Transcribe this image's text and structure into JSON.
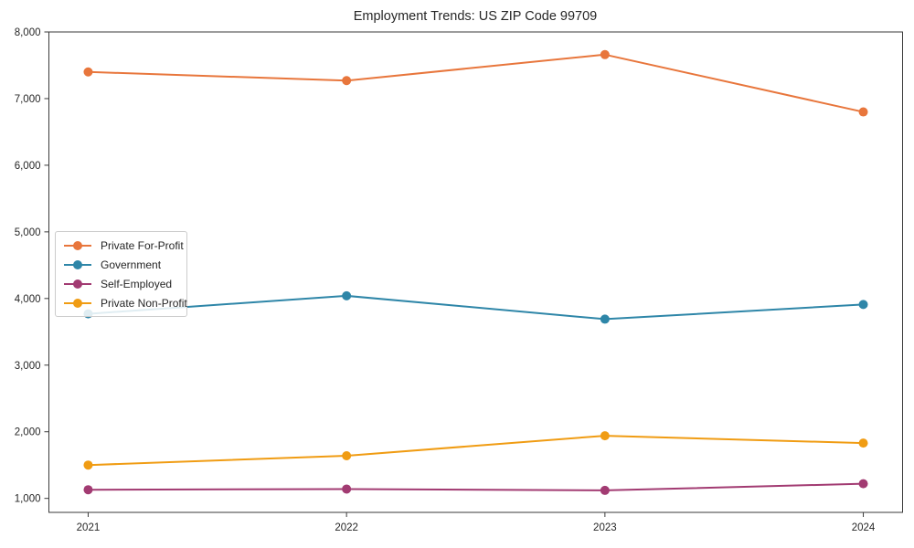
{
  "chart_data": {
    "type": "line",
    "title": "Employment Trends: US ZIP Code 99709",
    "categories": [
      "2021",
      "2022",
      "2023",
      "2024"
    ],
    "series": [
      {
        "name": "Private For-Profit",
        "color": "#E8763C",
        "values": [
          7400,
          7270,
          7660,
          6800
        ]
      },
      {
        "name": "Government",
        "color": "#2E86A8",
        "values": [
          3770,
          4040,
          3690,
          3910
        ]
      },
      {
        "name": "Self-Employed",
        "color": "#A23B72",
        "values": [
          1130,
          1140,
          1120,
          1220
        ]
      },
      {
        "name": "Private Non-Profit",
        "color": "#F09C13",
        "values": [
          1500,
          1640,
          1940,
          1830
        ]
      }
    ],
    "y_ticks": [
      {
        "value": 1000,
        "label": "1,000"
      },
      {
        "value": 2000,
        "label": "2,000"
      },
      {
        "value": 3000,
        "label": "3,000"
      },
      {
        "value": 4000,
        "label": "4,000"
      },
      {
        "value": 5000,
        "label": "5,000"
      },
      {
        "value": 6000,
        "label": "6,000"
      },
      {
        "value": 7000,
        "label": "7,000"
      },
      {
        "value": 8000,
        "label": "8,000"
      }
    ],
    "ylim": [
      790,
      8000
    ],
    "xlabel": "",
    "ylabel": "",
    "grid": false,
    "legend_position": "center-left",
    "background": "#ffffff",
    "axis_color": "#3a3a3a",
    "text_color": "#262626"
  }
}
